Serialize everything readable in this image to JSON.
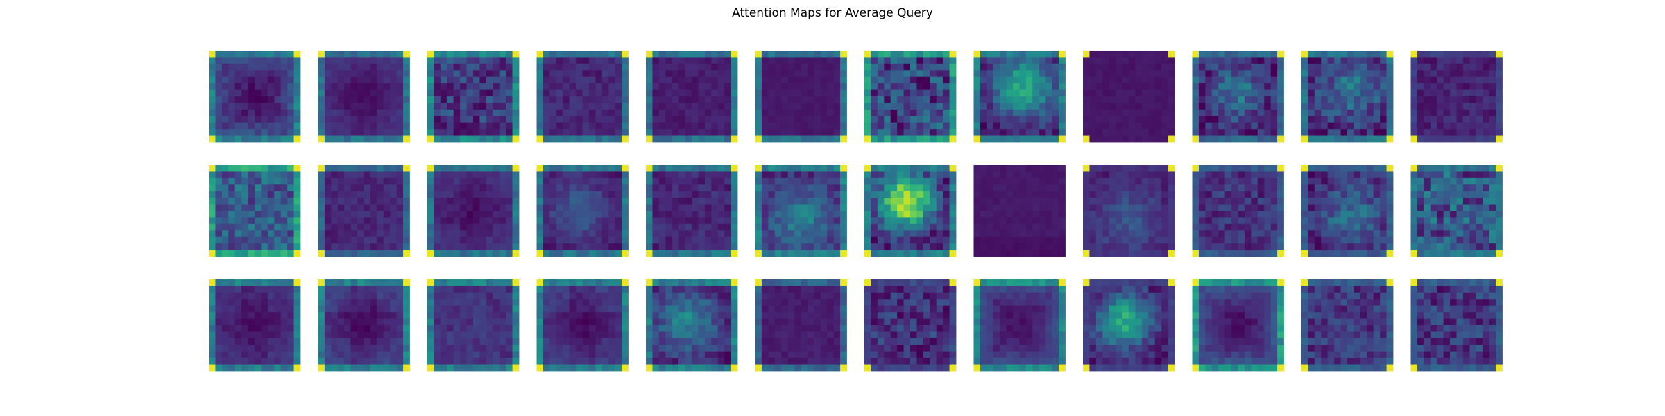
{
  "figure": {
    "title": "Attention Maps for Average Query"
  },
  "chart_data": {
    "type": "heatmap",
    "title": "Attention Maps for Average Query",
    "colormap": "viridis",
    "axes_visible": false,
    "grid": {
      "rows": 3,
      "cols": 12
    },
    "map_resolution": 14,
    "value_range": [
      0,
      1
    ],
    "maps": [
      {
        "pattern": "ring",
        "strength": 0.3,
        "noise": 0.06,
        "corners": 1.0,
        "border": 0.45
      },
      {
        "pattern": "cross",
        "strength": 0.14,
        "noise": 0.03,
        "corners": 1.0,
        "border": 0.4
      },
      {
        "pattern": "noisy",
        "strength": 0.2,
        "noise": 0.16,
        "corners": 1.0,
        "border": 0.5,
        "dark_bottom": true
      },
      {
        "pattern": "noisy",
        "strength": 0.1,
        "noise": 0.07,
        "corners": 1.0,
        "border": 0.4
      },
      {
        "pattern": "noisy",
        "strength": 0.05,
        "noise": 0.04,
        "corners": 1.0,
        "border": 0.4
      },
      {
        "pattern": "noisy",
        "strength": 0.03,
        "noise": 0.02,
        "corners": 1.0,
        "border": 0.4
      },
      {
        "pattern": "noisy",
        "strength": 0.25,
        "noise": 0.22,
        "corners": 1.0,
        "border": 0.55
      },
      {
        "pattern": "center",
        "strength": 0.55,
        "noise": 0.1,
        "corners": 1.0,
        "border": 0.45,
        "center_x": 0.55,
        "center_y": 0.4,
        "spread": 0.25
      },
      {
        "pattern": "noisy",
        "strength": 0.02,
        "noise": 0.02,
        "corners": 1.0,
        "border": 0.05
      },
      {
        "pattern": "center",
        "strength": 0.35,
        "noise": 0.14,
        "corners": 1.0,
        "border": 0.35,
        "center_x": 0.5,
        "center_y": 0.45,
        "spread": 0.22
      },
      {
        "pattern": "center",
        "strength": 0.3,
        "noise": 0.14,
        "corners": 1.0,
        "border": 0.4,
        "center_x": 0.55,
        "center_y": 0.4,
        "spread": 0.3
      },
      {
        "pattern": "noisy",
        "strength": 0.08,
        "noise": 0.07,
        "corners": 1.0,
        "border": 0.2
      },
      {
        "pattern": "noisy",
        "strength": 0.4,
        "noise": 0.18,
        "corners": 1.0,
        "border": 0.6
      },
      {
        "pattern": "noisy",
        "strength": 0.1,
        "noise": 0.06,
        "corners": 1.0,
        "border": 0.35
      },
      {
        "pattern": "cross",
        "strength": 0.14,
        "noise": 0.04,
        "corners": 1.0,
        "border": 0.4
      },
      {
        "pattern": "center",
        "strength": 0.22,
        "noise": 0.06,
        "corners": 1.0,
        "border": 0.4,
        "center_x": 0.45,
        "center_y": 0.5,
        "spread": 0.25
      },
      {
        "pattern": "noisy",
        "strength": 0.1,
        "noise": 0.07,
        "corners": 1.0,
        "border": 0.4
      },
      {
        "pattern": "center",
        "strength": 0.35,
        "noise": 0.1,
        "corners": 1.0,
        "border": 0.45,
        "center_x": 0.5,
        "center_y": 0.6,
        "spread": 0.3
      },
      {
        "pattern": "center",
        "strength": 0.85,
        "noise": 0.14,
        "corners": 1.0,
        "border": 0.45,
        "center_x": 0.45,
        "center_y": 0.4,
        "spread": 0.22
      },
      {
        "pattern": "noisy",
        "strength": 0.03,
        "noise": 0.02,
        "corners": 0.0,
        "border": 0.0,
        "dark_bottom": true
      },
      {
        "pattern": "center",
        "strength": 0.2,
        "noise": 0.06,
        "corners": 1.0,
        "border": 0.15,
        "center_x": 0.5,
        "center_y": 0.6,
        "spread": 0.3
      },
      {
        "pattern": "noisy",
        "strength": 0.15,
        "noise": 0.1,
        "corners": 1.0,
        "border": 0.3
      },
      {
        "pattern": "center",
        "strength": 0.3,
        "noise": 0.12,
        "corners": 1.0,
        "border": 0.3,
        "center_x": 0.55,
        "center_y": 0.55,
        "spread": 0.28
      },
      {
        "pattern": "noisy",
        "strength": 0.35,
        "noise": 0.22,
        "corners": 1.0,
        "border": 0.4
      },
      {
        "pattern": "cross",
        "strength": 0.14,
        "noise": 0.04,
        "corners": 1.0,
        "border": 0.45
      },
      {
        "pattern": "cross",
        "strength": 0.2,
        "noise": 0.04,
        "corners": 1.0,
        "border": 0.45
      },
      {
        "pattern": "noisy",
        "strength": 0.16,
        "noise": 0.06,
        "corners": 1.0,
        "border": 0.45
      },
      {
        "pattern": "cross",
        "strength": 0.18,
        "noise": 0.04,
        "corners": 1.0,
        "border": 0.45
      },
      {
        "pattern": "center",
        "strength": 0.38,
        "noise": 0.1,
        "corners": 1.0,
        "border": 0.45,
        "center_x": 0.45,
        "center_y": 0.45,
        "spread": 0.26
      },
      {
        "pattern": "noisy",
        "strength": 0.05,
        "noise": 0.03,
        "corners": 1.0,
        "border": 0.35
      },
      {
        "pattern": "noisy",
        "strength": 0.15,
        "noise": 0.14,
        "corners": 1.0,
        "border": 0.2
      },
      {
        "pattern": "ring",
        "strength": 0.28,
        "noise": 0.04,
        "corners": 1.0,
        "border": 0.5
      },
      {
        "pattern": "center",
        "strength": 0.55,
        "noise": 0.1,
        "corners": 1.0,
        "border": 0.2,
        "center_x": 0.45,
        "center_y": 0.45,
        "spread": 0.22
      },
      {
        "pattern": "ring",
        "strength": 0.32,
        "noise": 0.05,
        "corners": 1.0,
        "border": 0.55
      },
      {
        "pattern": "noisy",
        "strength": 0.18,
        "noise": 0.12,
        "corners": 1.0,
        "border": 0.3
      },
      {
        "pattern": "noisy",
        "strength": 0.18,
        "noise": 0.14,
        "corners": 1.0,
        "border": 0.3
      }
    ]
  }
}
